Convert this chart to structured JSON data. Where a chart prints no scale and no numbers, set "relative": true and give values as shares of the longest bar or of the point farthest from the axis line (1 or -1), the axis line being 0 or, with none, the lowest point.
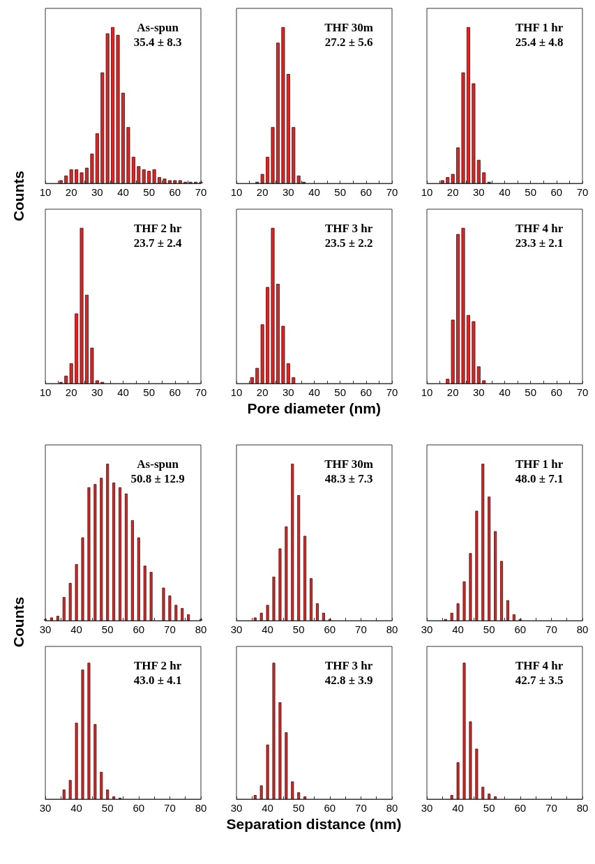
{
  "chart_data": [
    {
      "type": "bar",
      "relative": true,
      "title": "As-spun",
      "subtitle": "35.4 ± 8.3",
      "ylabel": "Counts",
      "color": "#e8201f",
      "xlim": [
        10,
        70
      ],
      "xticks": [
        10,
        {
          "value": 15,
          "label": null
        },
        20,
        {
          "value": 25,
          "label": null
        },
        30,
        {
          "value": 35,
          "label": null
        },
        40,
        {
          "value": 45,
          "label": null
        },
        50,
        {
          "value": 55,
          "label": null
        },
        60,
        {
          "value": 65,
          "label": null
        },
        70
      ],
      "x": [
        16,
        18,
        20,
        22,
        24,
        26,
        28,
        30,
        32,
        34,
        36,
        38,
        40,
        42,
        44,
        46,
        48,
        50,
        52,
        54,
        56,
        58,
        60,
        62,
        64,
        66,
        68,
        70
      ],
      "values": [
        0.02,
        0.05,
        0.09,
        0.09,
        0.07,
        0.1,
        0.19,
        0.32,
        0.71,
        0.96,
        1,
        0.95,
        0.58,
        0.36,
        0.17,
        0.11,
        0.09,
        0.08,
        0.09,
        0.04,
        0.03,
        0.02,
        0.02,
        0.02,
        0.01,
        0.01,
        0.01,
        0.01
      ]
    },
    {
      "type": "bar",
      "relative": true,
      "title": "THF 30m",
      "subtitle": "27.2 ± 5.6",
      "color": "#e8201f",
      "xlim": [
        10,
        70
      ],
      "xticks": [
        10,
        {
          "value": 15,
          "label": null
        },
        20,
        {
          "value": 25,
          "label": null
        },
        30,
        {
          "value": 35,
          "label": null
        },
        40,
        {
          "value": 45,
          "label": null
        },
        50,
        {
          "value": 55,
          "label": null
        },
        60,
        {
          "value": 65,
          "label": null
        },
        70
      ],
      "x": [
        18,
        20,
        22,
        24,
        26,
        28,
        30,
        32,
        34,
        36
      ],
      "values": [
        0.01,
        0.06,
        0.17,
        0.36,
        0.9,
        1,
        0.7,
        0.36,
        0.05,
        0.01
      ]
    },
    {
      "type": "bar",
      "relative": true,
      "title": "THF 1 hr",
      "subtitle": "25.4 ± 4.8",
      "color": "#e8201f",
      "xlim": [
        10,
        70
      ],
      "xticks": [
        10,
        {
          "value": 15,
          "label": null
        },
        20,
        {
          "value": 25,
          "label": null
        },
        30,
        {
          "value": 35,
          "label": null
        },
        40,
        {
          "value": 45,
          "label": null
        },
        50,
        {
          "value": 55,
          "label": null
        },
        60,
        {
          "value": 65,
          "label": null
        },
        70
      ],
      "x": [
        16,
        18,
        20,
        22,
        24,
        26,
        28,
        30,
        32,
        34
      ],
      "values": [
        0.02,
        0.04,
        0.06,
        0.23,
        0.71,
        1,
        0.64,
        0.15,
        0.07,
        0.01
      ]
    },
    {
      "type": "bar",
      "relative": true,
      "title": "THF 2 hr",
      "subtitle": "23.7 ± 2.4",
      "color": "#e8201f",
      "xlim": [
        10,
        70
      ],
      "xticks": [
        10,
        {
          "value": 15,
          "label": null
        },
        20,
        {
          "value": 25,
          "label": null
        },
        30,
        {
          "value": 35,
          "label": null
        },
        40,
        {
          "value": 45,
          "label": null
        },
        50,
        {
          "value": 55,
          "label": null
        },
        60,
        {
          "value": 65,
          "label": null
        },
        70
      ],
      "x": [
        16,
        18,
        20,
        22,
        24,
        26,
        28,
        30,
        32
      ],
      "values": [
        0.01,
        0.05,
        0.13,
        0.45,
        1,
        0.57,
        0.23,
        0.02,
        0.01
      ]
    },
    {
      "type": "bar",
      "relative": true,
      "title": "THF 3 hr",
      "subtitle": "23.5 ± 2.2",
      "xlabel": "Pore diameter (nm)",
      "color": "#e8201f",
      "xlim": [
        10,
        70
      ],
      "xticks": [
        10,
        {
          "value": 15,
          "label": null
        },
        20,
        {
          "value": 25,
          "label": null
        },
        30,
        {
          "value": 35,
          "label": null
        },
        40,
        {
          "value": 45,
          "label": null
        },
        50,
        {
          "value": 55,
          "label": null
        },
        60,
        {
          "value": 65,
          "label": null
        },
        70
      ],
      "x": [
        16,
        18,
        20,
        22,
        24,
        26,
        28,
        30,
        32
      ],
      "values": [
        0.04,
        0.1,
        0.38,
        0.62,
        1,
        0.64,
        0.37,
        0.13,
        0.04
      ]
    },
    {
      "type": "bar",
      "relative": true,
      "title": "THF 4 hr",
      "subtitle": "23.3 ± 2.1",
      "color": "#e8201f",
      "xlim": [
        10,
        70
      ],
      "xticks": [
        10,
        {
          "value": 15,
          "label": null
        },
        20,
        {
          "value": 25,
          "label": null
        },
        30,
        {
          "value": 35,
          "label": null
        },
        40,
        {
          "value": 45,
          "label": null
        },
        50,
        {
          "value": 55,
          "label": null
        },
        60,
        {
          "value": 65,
          "label": null
        },
        70
      ],
      "x": [
        18,
        20,
        22,
        24,
        26,
        28,
        30,
        32
      ],
      "values": [
        0.03,
        0.41,
        0.96,
        1,
        0.44,
        0.4,
        0.11,
        0.02
      ]
    },
    {
      "type": "bar",
      "relative": true,
      "title": "As-spun",
      "subtitle": "50.8 ± 12.9",
      "ylabel": "Counts",
      "color": "#e8201f",
      "xlim": [
        30,
        80
      ],
      "xticks": [
        30,
        {
          "value": 35,
          "label": null
        },
        40,
        {
          "value": 45,
          "label": null
        },
        50,
        {
          "value": 55,
          "label": null
        },
        60,
        {
          "value": 65,
          "label": null
        },
        70,
        {
          "value": 75,
          "label": null
        },
        80
      ],
      "x": [
        30,
        32,
        34,
        36,
        38,
        40,
        42,
        44,
        46,
        48,
        50,
        52,
        54,
        56,
        58,
        60,
        62,
        64,
        68,
        70,
        72,
        74,
        76,
        80
      ],
      "values": [
        0.01,
        0.02,
        0.03,
        0.15,
        0.24,
        0.36,
        0.53,
        0.85,
        0.87,
        0.91,
        1,
        0.88,
        0.85,
        0.81,
        0.64,
        0.53,
        0.35,
        0.31,
        0.21,
        0.16,
        0.1,
        0.08,
        0.04,
        0.01
      ]
    },
    {
      "type": "bar",
      "relative": true,
      "title": "THF 30m",
      "subtitle": "48.3 ± 7.3",
      "color": "#e8201f",
      "xlim": [
        30,
        80
      ],
      "xticks": [
        30,
        {
          "value": 35,
          "label": null
        },
        40,
        {
          "value": 45,
          "label": null
        },
        50,
        {
          "value": 55,
          "label": null
        },
        60,
        {
          "value": 65,
          "label": null
        },
        70,
        {
          "value": 75,
          "label": null
        },
        80
      ],
      "x": [
        36,
        38,
        40,
        42,
        44,
        46,
        48,
        50,
        52,
        54,
        56,
        58,
        60
      ],
      "values": [
        0.02,
        0.05,
        0.1,
        0.28,
        0.46,
        0.6,
        1,
        0.8,
        0.54,
        0.27,
        0.11,
        0.05,
        0.01
      ]
    },
    {
      "type": "bar",
      "relative": true,
      "title": "THF 1 hr",
      "subtitle": "48.0 ± 7.1",
      "color": "#e8201f",
      "xlim": [
        30,
        80
      ],
      "xticks": [
        30,
        {
          "value": 35,
          "label": null
        },
        40,
        {
          "value": 45,
          "label": null
        },
        50,
        {
          "value": 55,
          "label": null
        },
        60,
        {
          "value": 65,
          "label": null
        },
        70,
        {
          "value": 75,
          "label": null
        },
        80
      ],
      "x": [
        36,
        38,
        40,
        42,
        44,
        46,
        48,
        50,
        52,
        54,
        56,
        58,
        60
      ],
      "values": [
        0.01,
        0.05,
        0.11,
        0.25,
        0.43,
        0.7,
        1,
        0.79,
        0.57,
        0.38,
        0.13,
        0.04,
        0.01
      ]
    },
    {
      "type": "bar",
      "relative": true,
      "title": "THF 2 hr",
      "subtitle": "43.0 ± 4.1",
      "color": "#e8201f",
      "xlim": [
        30,
        80
      ],
      "xticks": [
        30,
        {
          "value": 35,
          "label": null
        },
        40,
        {
          "value": 45,
          "label": null
        },
        50,
        {
          "value": 55,
          "label": null
        },
        60,
        {
          "value": 65,
          "label": null
        },
        70,
        {
          "value": 75,
          "label": null
        },
        80
      ],
      "x": [
        36,
        38,
        40,
        42,
        44,
        46,
        48,
        50,
        52,
        54
      ],
      "values": [
        0.07,
        0.14,
        0.56,
        0.95,
        1,
        0.55,
        0.2,
        0.07,
        0.02,
        0.01
      ]
    },
    {
      "type": "bar",
      "relative": true,
      "title": "THF 3 hr",
      "subtitle": "42.8 ± 3.9",
      "xlabel": "Separation distance (nm)",
      "color": "#e8201f",
      "xlim": [
        30,
        80
      ],
      "xticks": [
        30,
        {
          "value": 35,
          "label": null
        },
        40,
        {
          "value": 45,
          "label": null
        },
        50,
        {
          "value": 55,
          "label": null
        },
        60,
        {
          "value": 65,
          "label": null
        },
        70,
        {
          "value": 75,
          "label": null
        },
        80
      ],
      "x": [
        36,
        38,
        40,
        42,
        44,
        46,
        48,
        50,
        52
      ],
      "values": [
        0.03,
        0.1,
        0.4,
        1,
        0.71,
        0.49,
        0.13,
        0.05,
        0.02
      ]
    },
    {
      "type": "bar",
      "relative": true,
      "title": "THF 4 hr",
      "subtitle": "42.7 ± 3.5",
      "color": "#e8201f",
      "xlim": [
        30,
        80
      ],
      "xticks": [
        30,
        {
          "value": 35,
          "label": null
        },
        40,
        {
          "value": 45,
          "label": null
        },
        50,
        {
          "value": 55,
          "label": null
        },
        60,
        {
          "value": 65,
          "label": null
        },
        70,
        {
          "value": 75,
          "label": null
        },
        80
      ],
      "x": [
        38,
        40,
        42,
        44,
        46,
        48,
        50,
        52
      ],
      "values": [
        0.03,
        0.27,
        1,
        0.57,
        0.37,
        0.09,
        0.04,
        0.02
      ]
    }
  ]
}
